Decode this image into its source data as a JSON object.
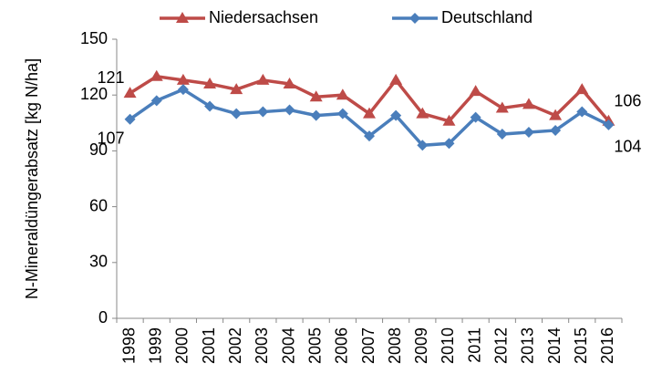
{
  "chart_data": {
    "type": "line",
    "y_label": "N-Mineraldüngerabsatz [kg N/ha]",
    "categories": [
      "1998",
      "1999",
      "2000",
      "2001",
      "2002",
      "2003",
      "2004",
      "2005",
      "2006",
      "2007",
      "2008",
      "2009",
      "2010",
      "2011",
      "2012",
      "2013",
      "2014",
      "2015",
      "2016"
    ],
    "series": [
      {
        "name": "Niedersachsen",
        "color": "#be4b48",
        "marker": "triangle",
        "values": [
          121,
          130,
          128,
          126,
          123,
          128,
          126,
          119,
          120,
          110,
          128,
          110,
          106,
          122,
          113,
          115,
          109,
          123,
          106
        ]
      },
      {
        "name": "Deutschland",
        "color": "#4a7ebb",
        "marker": "diamond",
        "values": [
          107,
          117,
          123,
          114,
          110,
          111,
          112,
          109,
          110,
          98,
          109,
          93,
          94,
          108,
          99,
          100,
          101,
          111,
          104
        ]
      }
    ],
    "data_labels": "first-last",
    "ylim": [
      0,
      150
    ],
    "yticks": [
      0,
      30,
      60,
      90,
      120,
      150
    ],
    "legend": "top",
    "grid": false
  }
}
